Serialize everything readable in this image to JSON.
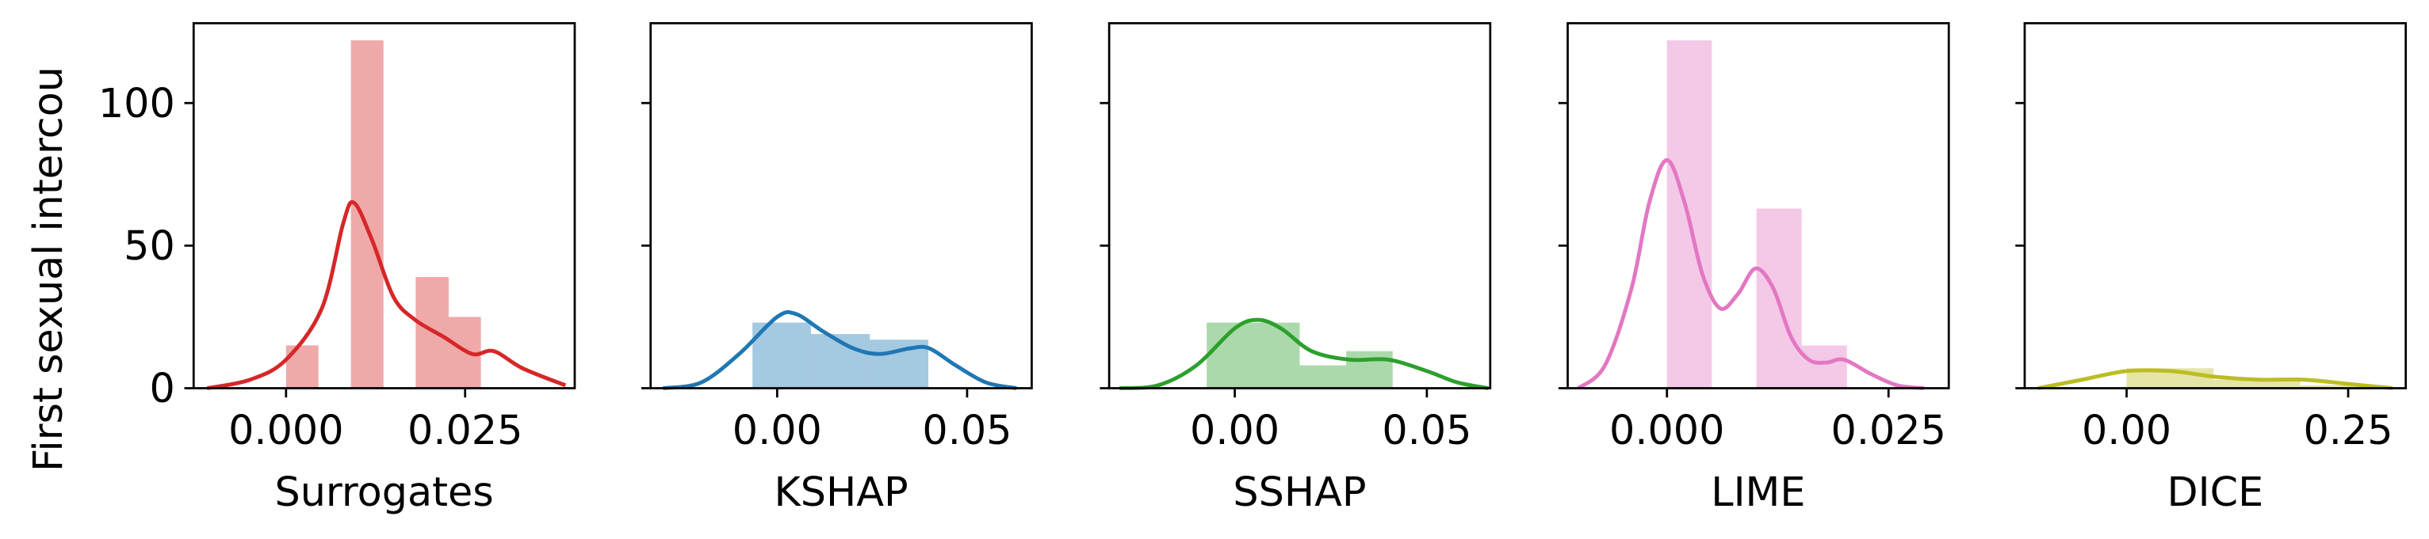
{
  "chart_data": [
    {
      "type": "histogram",
      "xlabel": "Surrogates",
      "ylabel": "First sexual intercou",
      "color": "#d62728",
      "bins": [
        0,
        0.00453,
        0.00906,
        0.0136,
        0.0181,
        0.0227,
        0.0272
      ],
      "counts": [
        15,
        0,
        122,
        0,
        39,
        25
      ],
      "kde_x": [
        -0.011,
        -0.005,
        0,
        0.005,
        0.008,
        0.0095,
        0.012,
        0.015,
        0.018,
        0.022,
        0.026,
        0.029,
        0.033,
        0.039
      ],
      "kde_y": [
        0,
        3,
        10,
        28,
        58,
        65,
        52,
        32,
        24,
        18,
        12,
        13,
        7,
        1
      ],
      "xlim": [
        -0.0129,
        0.0403
      ],
      "xticks": [
        {
          "value": 0,
          "label": "0.000"
        },
        {
          "value": 0.025,
          "label": "0.025"
        }
      ],
      "ylim": [
        0,
        128
      ],
      "yticks": [
        0,
        50,
        100
      ]
    },
    {
      "type": "histogram",
      "xlabel": "KSHAP",
      "color": "#1f77b4",
      "bins": [
        -0.0065,
        0.0089,
        0.0244,
        0.0398
      ],
      "counts": [
        23,
        19,
        17
      ],
      "kde_x": [
        -0.03,
        -0.02,
        -0.01,
        0,
        0.005,
        0.012,
        0.02,
        0.027,
        0.035,
        0.04,
        0.047,
        0.055,
        0.063
      ],
      "kde_y": [
        0,
        2,
        12,
        25,
        26,
        20,
        14,
        12,
        14,
        14,
        8,
        2,
        0
      ],
      "xlim": [
        -0.0333,
        0.067
      ],
      "xticks": [
        {
          "value": 0,
          "label": "0.00"
        },
        0.05
      ],
      "ylim": [
        0,
        128
      ],
      "yticks": [
        0,
        50,
        100
      ]
    },
    {
      "type": "histogram",
      "xlabel": "SSHAP",
      "color": "#2ca02c",
      "bins": [
        -0.0073,
        0.0048,
        0.0169,
        0.029,
        0.0411
      ],
      "counts": [
        23,
        23,
        8,
        13
      ],
      "kde_x": [
        -0.03,
        -0.02,
        -0.01,
        0,
        0.006,
        0.012,
        0.02,
        0.03,
        0.04,
        0.05,
        0.058,
        0.066
      ],
      "kde_y": [
        0,
        1,
        8,
        21,
        24,
        21,
        13,
        10,
        10,
        6,
        2,
        0
      ],
      "xlim": [
        -0.0327,
        0.0665
      ],
      "xticks": [
        {
          "value": 0,
          "label": "0.00"
        },
        0.05
      ],
      "ylim": [
        0,
        128
      ],
      "yticks": [
        0,
        50,
        100
      ]
    },
    {
      "type": "histogram",
      "xlabel": "LIME",
      "color": "#e377c2",
      "bins": [
        0,
        0.00507,
        0.0101,
        0.0152,
        0.0203
      ],
      "counts": [
        122,
        0,
        63,
        15
      ],
      "kde_x": [
        -0.01,
        -0.007,
        -0.004,
        -0.002,
        0,
        0.002,
        0.004,
        0.006,
        0.008,
        0.01,
        0.012,
        0.014,
        0.016,
        0.018,
        0.02,
        0.023,
        0.026,
        0.029
      ],
      "kde_y": [
        0,
        8,
        35,
        65,
        80,
        65,
        40,
        28,
        33,
        42,
        35,
        18,
        10,
        9,
        10,
        5,
        1,
        0
      ],
      "xlim": [
        -0.0112,
        0.0318
      ],
      "xticks": [
        {
          "value": 0,
          "label": "0.000"
        },
        0.025
      ],
      "ylim": [
        0,
        128
      ],
      "yticks": [
        0,
        50,
        100
      ]
    },
    {
      "type": "histogram",
      "xlabel": "DICE",
      "color": "#bcbd22",
      "bins": [
        0,
        0.098,
        0.196,
        0.294
      ],
      "counts": [
        7,
        3,
        1
      ],
      "kde_x": [
        -0.1,
        -0.05,
        0,
        0.05,
        0.1,
        0.15,
        0.2,
        0.25,
        0.3
      ],
      "kde_y": [
        0,
        3,
        6,
        6,
        4,
        3,
        3,
        1.5,
        0
      ],
      "xlim": [
        -0.115,
        0.315
      ],
      "xticks": [
        {
          "value": 0,
          "label": "0.00"
        },
        0.25
      ],
      "ylim": [
        0,
        128
      ],
      "yticks": [
        0,
        50,
        100
      ]
    }
  ]
}
